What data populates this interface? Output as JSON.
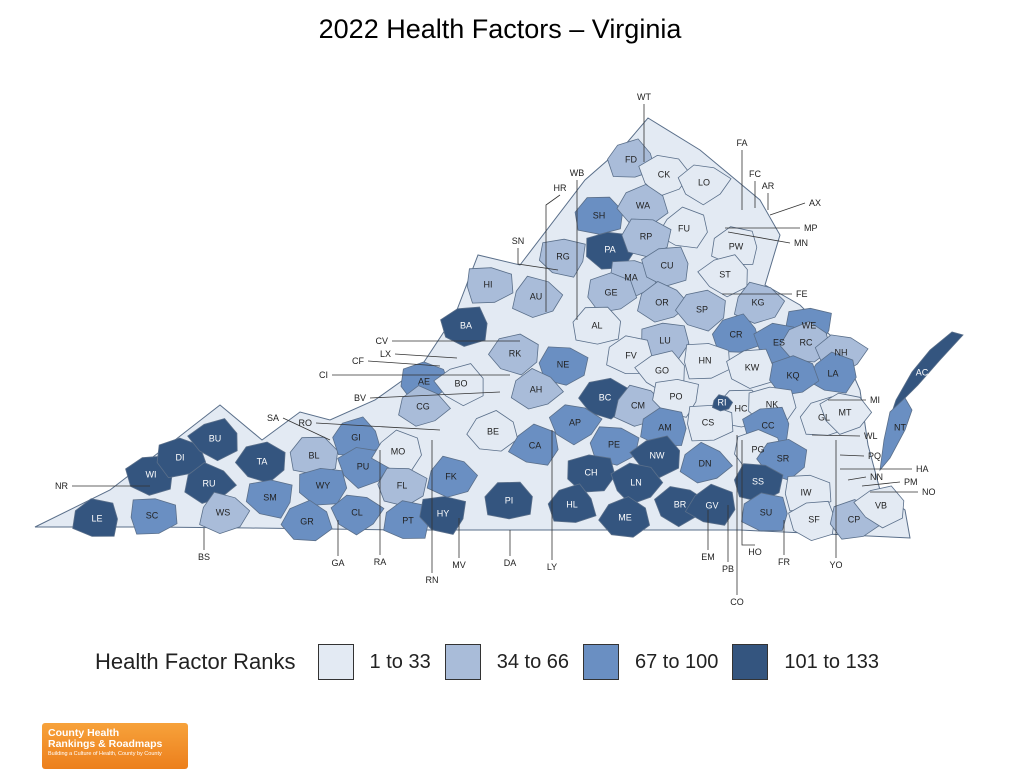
{
  "title": "2022 Health Factors – Virginia",
  "legend": {
    "title": "Health Factor Ranks",
    "items": [
      {
        "label": "1 to 33",
        "color": "#e3eaf3"
      },
      {
        "label": "34 to 66",
        "color": "#a9bcd9"
      },
      {
        "label": "67 to 100",
        "color": "#6a8fc2"
      },
      {
        "label": "101 to 133",
        "color": "#34557f"
      }
    ]
  },
  "logo": {
    "line1": "County Health",
    "line2": "Rankings & Roadmaps",
    "line3": "Building a Culture of Health, County by County"
  },
  "counties": [
    {
      "code": "LE",
      "tier": 4
    },
    {
      "code": "SC",
      "tier": 3
    },
    {
      "code": "WI",
      "tier": 4
    },
    {
      "code": "DI",
      "tier": 4
    },
    {
      "code": "BU",
      "tier": 4
    },
    {
      "code": "RU",
      "tier": 4
    },
    {
      "code": "TA",
      "tier": 4
    },
    {
      "code": "WS",
      "tier": 2
    },
    {
      "code": "SM",
      "tier": 3
    },
    {
      "code": "BL",
      "tier": 2
    },
    {
      "code": "WY",
      "tier": 3
    },
    {
      "code": "GI",
      "tier": 3
    },
    {
      "code": "PU",
      "tier": 3
    },
    {
      "code": "GR",
      "tier": 3
    },
    {
      "code": "CL",
      "tier": 3
    },
    {
      "code": "MO",
      "tier": 1
    },
    {
      "code": "FL",
      "tier": 2
    },
    {
      "code": "PT",
      "tier": 3
    },
    {
      "code": "HI",
      "tier": 2
    },
    {
      "code": "BA",
      "tier": 4
    },
    {
      "code": "AE",
      "tier": 3
    },
    {
      "code": "BO",
      "tier": 1
    },
    {
      "code": "CG",
      "tier": 2
    },
    {
      "code": "RK",
      "tier": 2
    },
    {
      "code": "AU",
      "tier": 2
    },
    {
      "code": "RG",
      "tier": 2
    },
    {
      "code": "SH",
      "tier": 3
    },
    {
      "code": "PA",
      "tier": 4
    },
    {
      "code": "FD",
      "tier": 2
    },
    {
      "code": "CK",
      "tier": 1
    },
    {
      "code": "WA",
      "tier": 2
    },
    {
      "code": "LO",
      "tier": 1
    },
    {
      "code": "FU",
      "tier": 1
    },
    {
      "code": "RP",
      "tier": 2
    },
    {
      "code": "PW",
      "tier": 1
    },
    {
      "code": "MA",
      "tier": 2
    },
    {
      "code": "CU",
      "tier": 2
    },
    {
      "code": "GE",
      "tier": 2
    },
    {
      "code": "ST",
      "tier": 1
    },
    {
      "code": "OR",
      "tier": 2
    },
    {
      "code": "SP",
      "tier": 2
    },
    {
      "code": "KG",
      "tier": 2
    },
    {
      "code": "WE",
      "tier": 3
    },
    {
      "code": "AL",
      "tier": 1
    },
    {
      "code": "LU",
      "tier": 2
    },
    {
      "code": "CR",
      "tier": 3
    },
    {
      "code": "ES",
      "tier": 3
    },
    {
      "code": "RC",
      "tier": 2
    },
    {
      "code": "NH",
      "tier": 2
    },
    {
      "code": "LA",
      "tier": 3
    },
    {
      "code": "NE",
      "tier": 3
    },
    {
      "code": "FV",
      "tier": 1
    },
    {
      "code": "HN",
      "tier": 1
    },
    {
      "code": "KW",
      "tier": 1
    },
    {
      "code": "KQ",
      "tier": 3
    },
    {
      "code": "GO",
      "tier": 1
    },
    {
      "code": "AH",
      "tier": 2
    },
    {
      "code": "BC",
      "tier": 4
    },
    {
      "code": "CM",
      "tier": 2
    },
    {
      "code": "PO",
      "tier": 1
    },
    {
      "code": "HC",
      "tier": 1
    },
    {
      "code": "NK",
      "tier": 1
    },
    {
      "code": "GL",
      "tier": 1
    },
    {
      "code": "MT",
      "tier": 1
    },
    {
      "code": "BE",
      "tier": 1
    },
    {
      "code": "AP",
      "tier": 3
    },
    {
      "code": "CA",
      "tier": 3
    },
    {
      "code": "PE",
      "tier": 3
    },
    {
      "code": "AM",
      "tier": 3
    },
    {
      "code": "CS",
      "tier": 1
    },
    {
      "code": "CC",
      "tier": 3
    },
    {
      "code": "PG",
      "tier": 1
    },
    {
      "code": "NW",
      "tier": 4
    },
    {
      "code": "DN",
      "tier": 3
    },
    {
      "code": "SR",
      "tier": 3
    },
    {
      "code": "FK",
      "tier": 3
    },
    {
      "code": "HY",
      "tier": 4
    },
    {
      "code": "PI",
      "tier": 4
    },
    {
      "code": "CH",
      "tier": 4
    },
    {
      "code": "HL",
      "tier": 4
    },
    {
      "code": "LN",
      "tier": 4
    },
    {
      "code": "ME",
      "tier": 4
    },
    {
      "code": "BR",
      "tier": 4
    },
    {
      "code": "GV",
      "tier": 4
    },
    {
      "code": "SS",
      "tier": 4
    },
    {
      "code": "SU",
      "tier": 3
    },
    {
      "code": "IW",
      "tier": 1
    },
    {
      "code": "SF",
      "tier": 1
    },
    {
      "code": "CP",
      "tier": 2
    },
    {
      "code": "VB",
      "tier": 1
    },
    {
      "code": "AC",
      "tier": 4
    },
    {
      "code": "NT",
      "tier": 3
    },
    {
      "code": "RI",
      "tier": 4
    }
  ],
  "callouts": [
    "WT",
    "FA",
    "FC",
    "AR",
    "AX",
    "MP",
    "MN",
    "WB",
    "HR",
    "SN",
    "FE",
    "CV",
    "LX",
    "CF",
    "CI",
    "BV",
    "SA",
    "RO",
    "NR",
    "MI",
    "WL",
    "PQ",
    "HA",
    "NN",
    "PM",
    "NO",
    "BS",
    "GA",
    "RA",
    "RN",
    "MV",
    "DA",
    "LY",
    "EM",
    "PB",
    "CO",
    "HO",
    "FR",
    "YO"
  ]
}
